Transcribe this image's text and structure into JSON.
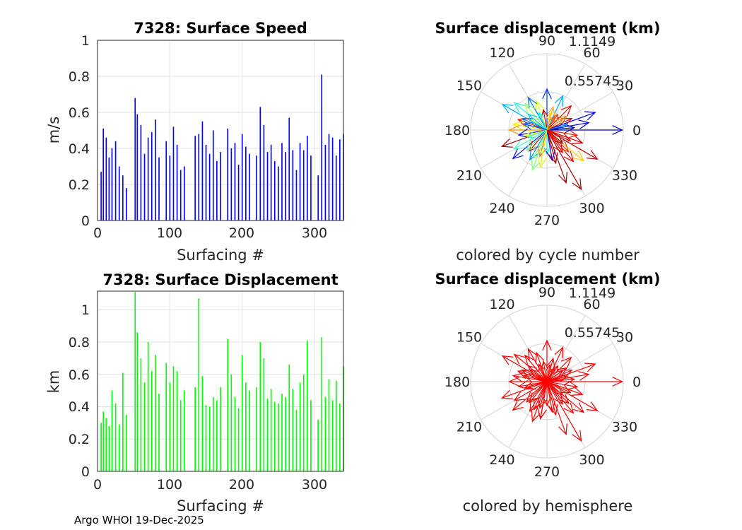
{
  "footer": "Argo WHOI 19-Dec-2025",
  "chart_data": [
    {
      "type": "bar",
      "title": "7328: Surface Speed",
      "xlabel": "Surfacing #",
      "ylabel": "m/s",
      "color": "#0000ff",
      "xlim": [
        0,
        340
      ],
      "ylim": [
        0,
        1
      ],
      "xticks": [
        "0",
        "100",
        "200",
        "300"
      ],
      "yticks": [
        "0",
        "0.2",
        "0.4",
        "0.6",
        "0.8",
        "1"
      ],
      "grid": true,
      "x": [
        5,
        8,
        12,
        16,
        20,
        25,
        30,
        35,
        40,
        52,
        55,
        60,
        65,
        70,
        75,
        80,
        85,
        95,
        100,
        105,
        110,
        115,
        120,
        135,
        140,
        145,
        150,
        155,
        160,
        165,
        170,
        180,
        185,
        190,
        195,
        200,
        205,
        210,
        220,
        225,
        230,
        235,
        240,
        245,
        250,
        255,
        260,
        265,
        270,
        275,
        280,
        285,
        290,
        295,
        305,
        310,
        315,
        320,
        325,
        330,
        335,
        340
      ],
      "values": [
        0.27,
        0.51,
        0.46,
        0.35,
        0.4,
        0.44,
        0.3,
        0.25,
        0.18,
        0.68,
        0.59,
        0.53,
        0.37,
        0.46,
        0.49,
        0.56,
        0.35,
        0.44,
        0.36,
        0.52,
        0.42,
        0.28,
        0.3,
        0.47,
        0.48,
        0.55,
        0.42,
        0.37,
        0.5,
        0.33,
        0.38,
        0.51,
        0.4,
        0.43,
        0.31,
        0.48,
        0.41,
        0.37,
        0.36,
        0.63,
        0.53,
        0.38,
        0.42,
        0.33,
        0.3,
        0.43,
        0.38,
        0.57,
        0.39,
        0.28,
        0.43,
        0.39,
        0.47,
        0.36,
        0.25,
        0.81,
        0.42,
        0.48,
        0.46,
        0.36,
        0.45,
        0.48
      ]
    },
    {
      "type": "bar",
      "title": "7328: Surface Displacement",
      "xlabel": "Surfacing #",
      "ylabel": "km",
      "color": "#00ff00",
      "xlim": [
        0,
        340
      ],
      "ylim": [
        0,
        1.1149
      ],
      "xticks": [
        "0",
        "100",
        "200",
        "300"
      ],
      "yticks": [
        "0",
        "0.2",
        "0.4",
        "0.6",
        "0.8",
        "1"
      ],
      "grid": true,
      "x": [
        5,
        8,
        12,
        16,
        20,
        25,
        30,
        35,
        40,
        52,
        55,
        60,
        65,
        70,
        75,
        80,
        85,
        95,
        100,
        105,
        110,
        115,
        120,
        135,
        140,
        145,
        150,
        155,
        160,
        165,
        170,
        180,
        185,
        190,
        195,
        200,
        205,
        210,
        220,
        225,
        230,
        235,
        240,
        245,
        250,
        255,
        260,
        265,
        270,
        275,
        280,
        285,
        290,
        295,
        305,
        310,
        315,
        320,
        325,
        330,
        335,
        340
      ],
      "values": [
        0.3,
        0.37,
        0.33,
        0.28,
        0.5,
        0.42,
        0.29,
        0.61,
        0.35,
        1.11,
        0.86,
        0.7,
        0.55,
        0.8,
        0.62,
        0.72,
        0.48,
        0.67,
        0.55,
        0.65,
        0.62,
        0.44,
        0.5,
        0.52,
        1.07,
        0.59,
        0.41,
        0.4,
        0.46,
        0.44,
        0.52,
        0.82,
        0.6,
        0.46,
        0.39,
        0.72,
        0.55,
        0.5,
        0.52,
        0.8,
        0.7,
        0.45,
        0.51,
        0.43,
        0.42,
        0.48,
        0.46,
        0.66,
        0.51,
        0.38,
        0.55,
        0.6,
        0.81,
        0.44,
        0.32,
        0.83,
        0.46,
        0.57,
        0.44,
        0.56,
        0.42,
        0.65
      ]
    },
    {
      "type": "scatter",
      "subtype": "polar-compass",
      "title": "Surface displacement (km)",
      "caption": "colored by cycle number",
      "rlim": [
        0,
        1.1149
      ],
      "rticks": [
        "0.55745",
        "1.1149"
      ],
      "thetaticks": [
        "0",
        "30",
        "60",
        "90",
        "120",
        "150",
        "180",
        "210",
        "240",
        "270",
        "300",
        "330"
      ],
      "colormap": "jet",
      "series": [
        {
          "angles_deg": [
            0,
            10,
            20,
            25,
            35,
            45,
            55,
            65,
            75,
            90,
            100,
            110,
            120,
            130,
            140,
            150,
            160,
            170,
            180,
            190,
            200,
            210,
            220,
            230,
            240,
            250,
            260,
            270,
            280,
            290,
            300,
            310,
            320,
            330,
            340,
            350,
            5,
            15,
            60,
            115,
            145,
            165,
            195,
            225,
            255,
            285,
            315,
            335,
            15,
            80,
            140,
            200,
            260,
            320,
            35,
            155,
            245,
            305
          ],
          "radii_km": [
            1.1,
            0.62,
            0.75,
            0.4,
            0.35,
            0.5,
            0.28,
            0.55,
            0.35,
            0.6,
            0.3,
            0.45,
            0.55,
            0.5,
            0.62,
            0.75,
            0.45,
            0.5,
            0.55,
            0.42,
            0.7,
            0.55,
            0.65,
            0.4,
            0.5,
            0.62,
            0.55,
            0.35,
            0.45,
            0.82,
            1.0,
            0.6,
            0.7,
            0.85,
            0.55,
            0.45,
            0.4,
            0.3,
            0.22,
            0.28,
            0.3,
            0.35,
            0.33,
            0.42,
            0.4,
            0.5,
            0.45,
            0.38,
            0.3,
            0.25,
            0.36,
            0.3,
            0.55,
            0.3,
            0.28,
            0.4,
            0.45,
            0.4
          ],
          "cycles": [
            20,
            30,
            40,
            310,
            260,
            300,
            280,
            100,
            240,
            60,
            320,
            200,
            80,
            180,
            140,
            100,
            290,
            220,
            250,
            40,
            330,
            150,
            50,
            310,
            90,
            170,
            200,
            120,
            30,
            330,
            330,
            300,
            230,
            320,
            310,
            290,
            10,
            60,
            270,
            130,
            190,
            70,
            210,
            160,
            260,
            320,
            280,
            300,
            90,
            230,
            110,
            150,
            200,
            330,
            250,
            80,
            170,
            300
          ]
        }
      ]
    },
    {
      "type": "scatter",
      "subtype": "polar-compass",
      "title": "Surface displacement (km)",
      "caption": "colored by hemisphere",
      "rlim": [
        0,
        1.1149
      ],
      "rticks": [
        "0.55745",
        "1.1149"
      ],
      "thetaticks": [
        "0",
        "30",
        "60",
        "90",
        "120",
        "150",
        "180",
        "210",
        "240",
        "270",
        "300",
        "330"
      ],
      "color": "#ff0000",
      "series": [
        {
          "angles_deg": [
            0,
            10,
            20,
            25,
            35,
            45,
            55,
            65,
            75,
            90,
            100,
            110,
            120,
            130,
            140,
            150,
            160,
            170,
            180,
            190,
            200,
            210,
            220,
            230,
            240,
            250,
            260,
            270,
            280,
            290,
            300,
            310,
            320,
            330,
            340,
            350,
            5,
            15,
            60,
            115,
            145,
            165,
            195,
            225,
            255,
            285,
            315,
            335,
            15,
            80,
            140,
            200,
            260,
            320,
            35,
            155,
            245,
            305
          ],
          "radii_km": [
            1.1,
            0.62,
            0.75,
            0.4,
            0.35,
            0.5,
            0.28,
            0.55,
            0.35,
            0.6,
            0.3,
            0.45,
            0.55,
            0.5,
            0.62,
            0.75,
            0.45,
            0.5,
            0.55,
            0.42,
            0.7,
            0.55,
            0.65,
            0.4,
            0.5,
            0.62,
            0.55,
            0.35,
            0.45,
            0.82,
            1.0,
            0.6,
            0.7,
            0.85,
            0.55,
            0.45,
            0.4,
            0.3,
            0.22,
            0.28,
            0.3,
            0.35,
            0.33,
            0.42,
            0.4,
            0.5,
            0.45,
            0.38,
            0.3,
            0.25,
            0.36,
            0.3,
            0.55,
            0.3,
            0.28,
            0.4,
            0.45,
            0.4
          ]
        }
      ]
    }
  ]
}
